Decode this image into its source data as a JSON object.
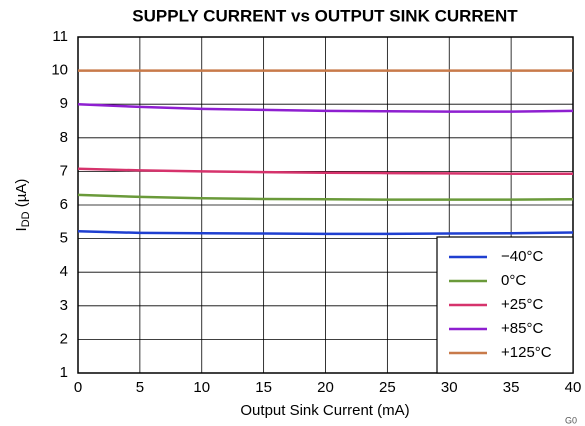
{
  "chart_data": {
    "type": "line",
    "title": "SUPPLY CURRENT vs OUTPUT SINK CURRENT",
    "x_label": "Output Sink Current (mA)",
    "y_label": {
      "main": "I",
      "sub": "DD",
      "unit": " (µA)"
    },
    "annotation": "G0",
    "x": [
      0,
      5,
      10,
      15,
      20,
      25,
      30,
      35,
      40
    ],
    "series": [
      {
        "name": "−40°C",
        "color": "#1f3fd0",
        "values": [
          5.22,
          5.17,
          5.16,
          5.15,
          5.14,
          5.14,
          5.15,
          5.16,
          5.18
        ]
      },
      {
        "name": "0°C",
        "color": "#6a9a3a",
        "values": [
          6.3,
          6.24,
          6.2,
          6.18,
          6.17,
          6.16,
          6.16,
          6.16,
          6.17
        ]
      },
      {
        "name": "+25°C",
        "color": "#d6336c",
        "values": [
          7.08,
          7.03,
          7.0,
          6.98,
          6.96,
          6.95,
          6.94,
          6.93,
          6.93
        ]
      },
      {
        "name": "+85°C",
        "color": "#8e1fd0",
        "values": [
          9.0,
          8.92,
          8.86,
          8.83,
          8.8,
          8.79,
          8.78,
          8.78,
          8.8
        ]
      },
      {
        "name": "+125°C",
        "color": "#c87a4a",
        "values": [
          10.0,
          10.0,
          10.0,
          10.0,
          10.0,
          10.0,
          10.0,
          10.0,
          10.0
        ]
      }
    ],
    "xlim": [
      0,
      40
    ],
    "xticks": [
      0,
      5,
      10,
      15,
      20,
      25,
      30,
      35,
      40
    ],
    "ylim": [
      1,
      11
    ],
    "yticks": [
      1,
      2,
      3,
      4,
      5,
      6,
      7,
      8,
      9,
      10,
      11
    ],
    "grid": true,
    "legend": "lower right"
  }
}
